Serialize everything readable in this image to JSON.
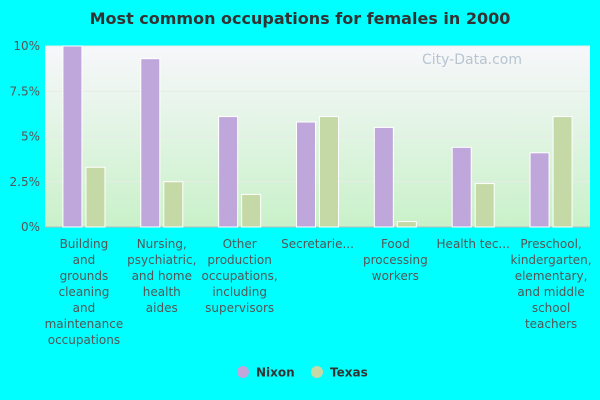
{
  "colors": {
    "background": "#00ffff",
    "nixon": "#bfa7db",
    "texas": "#c4d9a6",
    "plot_top": "#f7f7fb",
    "plot_bottom": "#c9f1c9"
  },
  "watermark": "City-Data.com",
  "chart_data": {
    "type": "bar",
    "title": "Most common occupations for females in 2000",
    "xlabel": "",
    "ylabel": "",
    "ylim": [
      0,
      10
    ],
    "yticks": [
      "0%",
      "2.5%",
      "5%",
      "7.5%",
      "10%"
    ],
    "ytick_values": [
      0,
      2.5,
      5,
      7.5,
      10
    ],
    "legend_position": "bottom",
    "categories": [
      [
        "Building",
        "and",
        "grounds",
        "cleaning",
        "and",
        "maintenance",
        "occupations"
      ],
      [
        "Nursing,",
        "psychiatric,",
        "and home",
        "health",
        "aides"
      ],
      [
        "Other",
        "production",
        "occupations,",
        "including",
        "supervisors"
      ],
      [
        "Secretarie..."
      ],
      [
        "Food",
        "processing",
        "workers"
      ],
      [
        "Health tec..."
      ],
      [
        "Preschool,",
        "kindergarten,",
        "elementary,",
        "and middle",
        "school",
        "teachers"
      ]
    ],
    "series": [
      {
        "name": "Nixon",
        "values": [
          10.0,
          9.3,
          6.1,
          5.8,
          5.5,
          4.4,
          4.1
        ]
      },
      {
        "name": "Texas",
        "values": [
          3.3,
          2.5,
          1.8,
          6.1,
          0.3,
          2.4,
          6.1
        ]
      }
    ]
  }
}
